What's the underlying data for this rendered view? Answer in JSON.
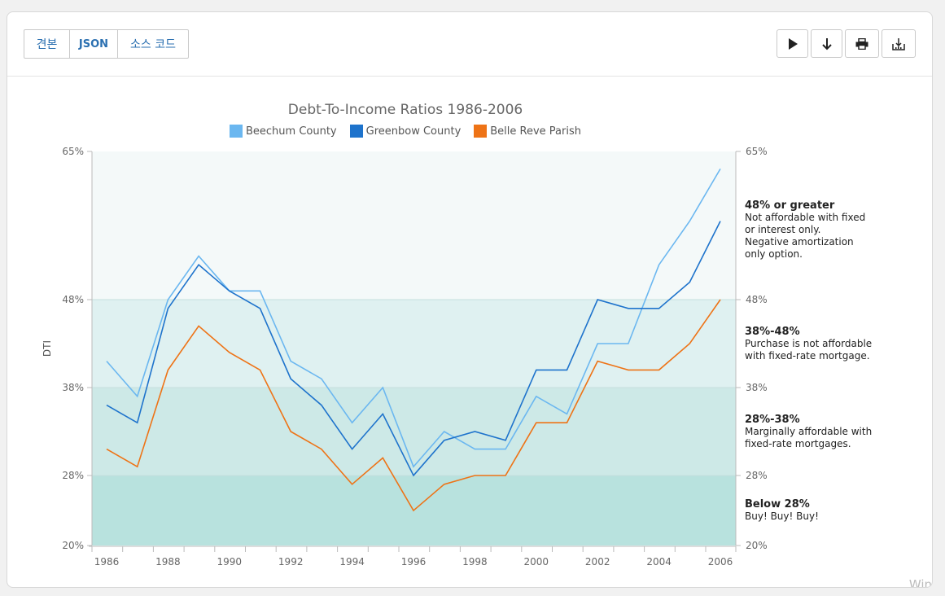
{
  "tabs": [
    {
      "label": "견본"
    },
    {
      "label": "JSON"
    },
    {
      "label": "소스 코드"
    }
  ],
  "actions": [
    {
      "icon": "play-icon"
    },
    {
      "icon": "download-arrow-icon"
    },
    {
      "icon": "print-icon"
    },
    {
      "icon": "export-icon"
    }
  ],
  "chart_data": {
    "type": "line",
    "title": "Debt-To-Income Ratios 1986-2006",
    "ylabel": "DTI",
    "xlabel": "",
    "ylim": [
      20,
      65
    ],
    "y_ticks": [
      "20%",
      "28%",
      "38%",
      "48%",
      "65%"
    ],
    "x": [
      1986,
      1987,
      1988,
      1989,
      1990,
      1991,
      1992,
      1993,
      1994,
      1995,
      1996,
      1997,
      1998,
      1999,
      2000,
      2001,
      2002,
      2003,
      2004,
      2005,
      2006
    ],
    "x_tick_labels": [
      "1986",
      "1988",
      "1990",
      "1992",
      "1994",
      "1996",
      "1998",
      "2000",
      "2002",
      "2004",
      "2006"
    ],
    "legend_position": "top",
    "series": [
      {
        "name": "Beechum County",
        "color": "#6bb7f0",
        "values": [
          41,
          37,
          48,
          53,
          49,
          49,
          41,
          39,
          34,
          38,
          29,
          33,
          31,
          31,
          37,
          35,
          43,
          43,
          52,
          57,
          63
        ]
      },
      {
        "name": "Greenbow County",
        "color": "#1e73cc",
        "values": [
          36,
          34,
          47,
          52,
          49,
          47,
          39,
          36,
          31,
          35,
          28,
          32,
          33,
          32,
          40,
          40,
          48,
          47,
          47,
          50,
          57
        ]
      },
      {
        "name": "Belle Reve Parish",
        "color": "#ee7316",
        "values": [
          31,
          29,
          40,
          45,
          42,
          40,
          33,
          31,
          27,
          30,
          24,
          27,
          28,
          28,
          34,
          34,
          41,
          40,
          40,
          43,
          48
        ]
      }
    ],
    "bands": [
      {
        "from": 48,
        "to": 65,
        "color": "#f4f9f9",
        "heading": "48% or greater",
        "lines": [
          "Not affordable with fixed",
          "or interest only.",
          "Negative amortization",
          "only option."
        ]
      },
      {
        "from": 38,
        "to": 48,
        "color": "#dff1f1",
        "heading": "38%-48%",
        "lines": [
          "Purchase is not affordable",
          "with fixed-rate mortgage."
        ]
      },
      {
        "from": 28,
        "to": 38,
        "color": "#cde9e7",
        "heading": "28%-38%",
        "lines": [
          "Marginally affordable with",
          "fixed-rate mortgages."
        ]
      },
      {
        "from": 20,
        "to": 28,
        "color": "#b8e2de",
        "heading": "Below 28%",
        "lines": [
          "Buy! Buy! Buy!"
        ]
      }
    ]
  },
  "watermark": "Win"
}
